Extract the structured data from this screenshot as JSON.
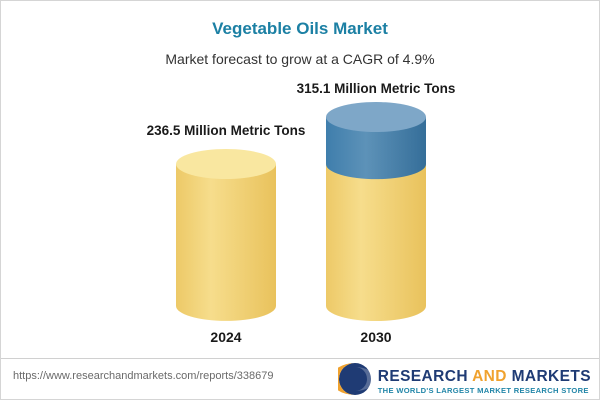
{
  "header": {
    "title": "Vegetable Oils Market",
    "subtitle": "Market forecast to grow at a CAGR of 4.9%"
  },
  "chart_data": {
    "type": "bar",
    "style": "cylinder",
    "categories": [
      "2024",
      "2030"
    ],
    "values": [
      236.5,
      315.1
    ],
    "unit": "Million Metric Tons",
    "bar_labels": [
      "236.5 Million Metric Tons",
      "315.1 Million Metric Tons"
    ],
    "title": "Vegetable Oils Market",
    "subtitle": "Market forecast to grow at a CAGR of 4.9%",
    "cagr_percent": 4.9,
    "legend_position": "none",
    "grid": false,
    "colors": {
      "base": "#F2CF6B",
      "base_top": "#F9E7A0",
      "growth": "#3E7DA9",
      "growth_top": "#7EA7C8"
    },
    "notes": "2030 bar top segment (growth over 2024) shown in blue"
  },
  "footer": {
    "url": "https://www.researchandmarkets.com/reports/338679",
    "logo": {
      "research": "RESEARCH",
      "and": "AND",
      "markets": "MARKETS",
      "tagline": "THE WORLD'S LARGEST MARKET RESEARCH STORE"
    }
  }
}
